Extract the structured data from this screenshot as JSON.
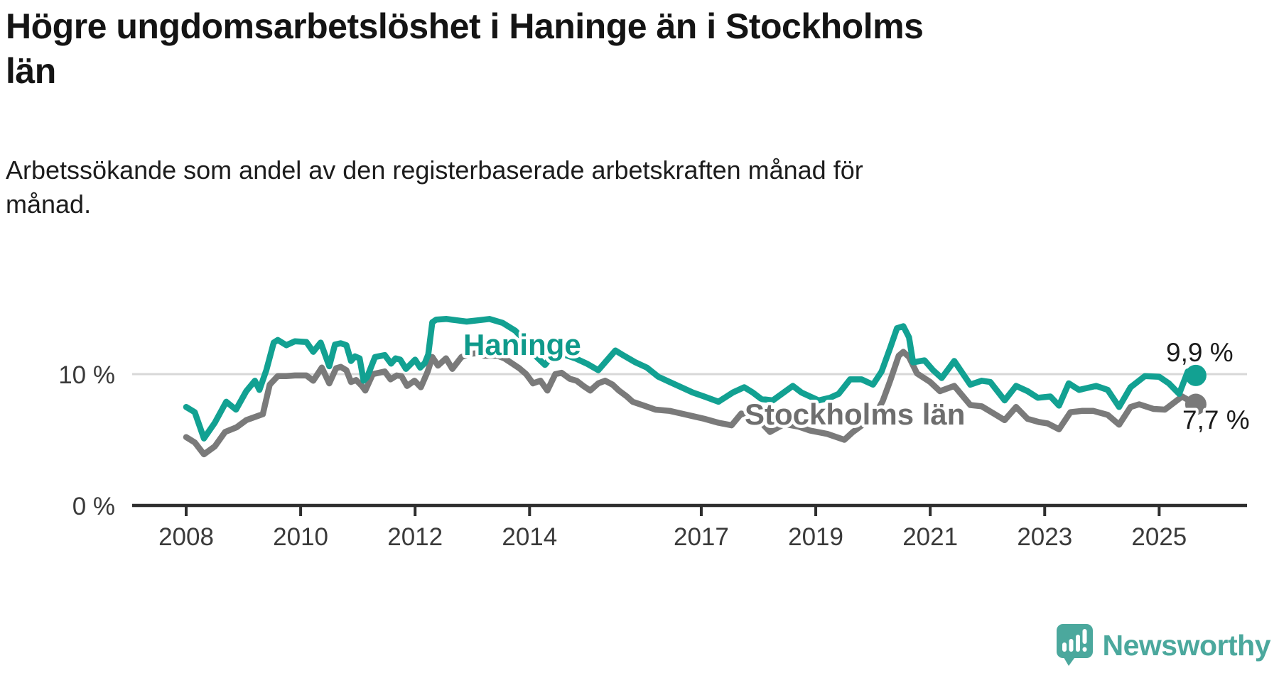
{
  "header": {
    "title": "Högre ungdomsarbetslöshet i Haninge än i Stockholms\nlän",
    "subtitle": "Arbetssökande som andel av den registerbaserade arbetskraften månad för\nmånad."
  },
  "chart_data": {
    "type": "line",
    "title": "Högre ungdomsarbetslöshet i Haninge än i Stockholms län",
    "unit": "percent of registered labour force",
    "x_label": "",
    "y_label": "",
    "x_range": [
      2008.0,
      2025.64
    ],
    "y_range": [
      0,
      14.7
    ],
    "x_ticks": [
      2008,
      2010,
      2012,
      2014,
      2017,
      2019,
      2021,
      2023,
      2025
    ],
    "y_ticks": [
      {
        "value": 10,
        "label": "10 %"
      },
      {
        "value": 0,
        "label": "0 %"
      }
    ],
    "gridlines_at": [
      10
    ],
    "gridline_color": "#D8D8D8",
    "axis_color": "#2E2E2E",
    "tick_label_color": "#3A3A3A",
    "legend_position": "inline-labels",
    "series": [
      {
        "name": "Haninge",
        "color": "#12A192",
        "label_color": "#0F9A8B",
        "end_value": 9.9,
        "end_label": "9,9 %",
        "points": [
          [
            2008.0,
            7.5
          ],
          [
            2008.15,
            7.1
          ],
          [
            2008.31,
            5.1
          ],
          [
            2008.5,
            6.3
          ],
          [
            2008.7,
            7.9
          ],
          [
            2008.87,
            7.3
          ],
          [
            2009.05,
            8.7
          ],
          [
            2009.2,
            9.5
          ],
          [
            2009.28,
            8.8
          ],
          [
            2009.4,
            10.3
          ],
          [
            2009.53,
            12.4
          ],
          [
            2009.6,
            12.6
          ],
          [
            2009.75,
            12.2
          ],
          [
            2009.9,
            12.5
          ],
          [
            2010.1,
            12.45
          ],
          [
            2010.22,
            11.7
          ],
          [
            2010.35,
            12.4
          ],
          [
            2010.5,
            10.6
          ],
          [
            2010.6,
            12.25
          ],
          [
            2010.7,
            12.35
          ],
          [
            2010.8,
            12.2
          ],
          [
            2010.88,
            11.0
          ],
          [
            2010.95,
            11.35
          ],
          [
            2011.03,
            11.2
          ],
          [
            2011.1,
            9.5
          ],
          [
            2011.16,
            9.75
          ],
          [
            2011.3,
            11.3
          ],
          [
            2011.47,
            11.45
          ],
          [
            2011.58,
            10.8
          ],
          [
            2011.66,
            11.2
          ],
          [
            2011.74,
            11.1
          ],
          [
            2011.84,
            10.4
          ],
          [
            2011.92,
            10.75
          ],
          [
            2012.0,
            11.1
          ],
          [
            2012.09,
            10.5
          ],
          [
            2012.17,
            10.85
          ],
          [
            2012.23,
            11.5
          ],
          [
            2012.3,
            13.95
          ],
          [
            2012.37,
            14.15
          ],
          [
            2012.55,
            14.2
          ],
          [
            2012.73,
            14.1
          ],
          [
            2012.9,
            14.0
          ],
          [
            2013.1,
            14.1
          ],
          [
            2013.3,
            14.2
          ],
          [
            2013.53,
            13.9
          ],
          [
            2013.75,
            13.3
          ],
          [
            2013.95,
            12.4
          ],
          [
            2014.1,
            11.4
          ],
          [
            2014.27,
            10.7
          ],
          [
            2014.45,
            11.7
          ],
          [
            2014.6,
            11.5
          ],
          [
            2014.8,
            11.2
          ],
          [
            2015.0,
            10.8
          ],
          [
            2015.2,
            10.3
          ],
          [
            2015.5,
            11.8
          ],
          [
            2015.65,
            11.4
          ],
          [
            2015.85,
            10.9
          ],
          [
            2016.05,
            10.5
          ],
          [
            2016.25,
            9.8
          ],
          [
            2016.45,
            9.4
          ],
          [
            2016.65,
            9.0
          ],
          [
            2016.85,
            8.6
          ],
          [
            2017.05,
            8.3
          ],
          [
            2017.3,
            7.9
          ],
          [
            2017.55,
            8.6
          ],
          [
            2017.75,
            9.0
          ],
          [
            2017.9,
            8.6
          ],
          [
            2018.05,
            8.1
          ],
          [
            2018.25,
            8.0
          ],
          [
            2018.6,
            9.1
          ],
          [
            2018.75,
            8.6
          ],
          [
            2019.05,
            8.0
          ],
          [
            2019.25,
            8.2
          ],
          [
            2019.4,
            8.5
          ],
          [
            2019.6,
            9.6
          ],
          [
            2019.8,
            9.6
          ],
          [
            2020.0,
            9.2
          ],
          [
            2020.15,
            10.2
          ],
          [
            2020.3,
            12.0
          ],
          [
            2020.42,
            13.5
          ],
          [
            2020.53,
            13.65
          ],
          [
            2020.63,
            12.8
          ],
          [
            2020.7,
            10.9
          ],
          [
            2020.9,
            11.05
          ],
          [
            2021.05,
            10.3
          ],
          [
            2021.2,
            9.7
          ],
          [
            2021.42,
            11.0
          ],
          [
            2021.7,
            9.2
          ],
          [
            2021.9,
            9.5
          ],
          [
            2022.05,
            9.4
          ],
          [
            2022.3,
            8.0
          ],
          [
            2022.5,
            9.1
          ],
          [
            2022.7,
            8.7
          ],
          [
            2022.88,
            8.2
          ],
          [
            2023.1,
            8.3
          ],
          [
            2023.25,
            7.6
          ],
          [
            2023.42,
            9.3
          ],
          [
            2023.6,
            8.8
          ],
          [
            2023.9,
            9.1
          ],
          [
            2024.1,
            8.8
          ],
          [
            2024.3,
            7.5
          ],
          [
            2024.5,
            9.0
          ],
          [
            2024.75,
            9.85
          ],
          [
            2025.0,
            9.8
          ],
          [
            2025.17,
            9.3
          ],
          [
            2025.35,
            8.5
          ],
          [
            2025.5,
            10.2
          ],
          [
            2025.64,
            9.9
          ]
        ]
      },
      {
        "name": "Stockholms län",
        "color": "#7A7A7A",
        "label_color": "#6E6E6E",
        "end_value": 7.7,
        "end_label": "7,7 %",
        "points": [
          [
            2008.0,
            5.2
          ],
          [
            2008.15,
            4.8
          ],
          [
            2008.31,
            3.9
          ],
          [
            2008.5,
            4.5
          ],
          [
            2008.68,
            5.6
          ],
          [
            2008.88,
            5.95
          ],
          [
            2009.05,
            6.5
          ],
          [
            2009.24,
            6.8
          ],
          [
            2009.34,
            6.95
          ],
          [
            2009.46,
            9.2
          ],
          [
            2009.6,
            9.85
          ],
          [
            2009.75,
            9.85
          ],
          [
            2009.9,
            9.9
          ],
          [
            2010.1,
            9.9
          ],
          [
            2010.22,
            9.5
          ],
          [
            2010.37,
            10.5
          ],
          [
            2010.5,
            9.3
          ],
          [
            2010.62,
            10.45
          ],
          [
            2010.7,
            10.55
          ],
          [
            2010.8,
            10.3
          ],
          [
            2010.88,
            9.4
          ],
          [
            2010.97,
            9.55
          ],
          [
            2011.07,
            9.1
          ],
          [
            2011.13,
            8.75
          ],
          [
            2011.26,
            10.0
          ],
          [
            2011.47,
            10.2
          ],
          [
            2011.57,
            9.6
          ],
          [
            2011.68,
            9.9
          ],
          [
            2011.76,
            9.85
          ],
          [
            2011.86,
            9.1
          ],
          [
            2011.99,
            9.5
          ],
          [
            2012.1,
            9.0
          ],
          [
            2012.22,
            10.2
          ],
          [
            2012.3,
            11.3
          ],
          [
            2012.4,
            10.65
          ],
          [
            2012.54,
            11.2
          ],
          [
            2012.65,
            10.4
          ],
          [
            2012.81,
            11.3
          ],
          [
            2012.98,
            11.55
          ],
          [
            2013.1,
            11.6
          ],
          [
            2013.2,
            11.4
          ],
          [
            2013.44,
            11.4
          ],
          [
            2013.56,
            11.2
          ],
          [
            2013.7,
            10.8
          ],
          [
            2013.82,
            10.45
          ],
          [
            2013.94,
            10.0
          ],
          [
            2014.06,
            9.3
          ],
          [
            2014.19,
            9.5
          ],
          [
            2014.31,
            8.75
          ],
          [
            2014.45,
            10.0
          ],
          [
            2014.56,
            10.1
          ],
          [
            2014.7,
            9.65
          ],
          [
            2014.82,
            9.5
          ],
          [
            2014.94,
            9.1
          ],
          [
            2015.06,
            8.75
          ],
          [
            2015.2,
            9.3
          ],
          [
            2015.32,
            9.5
          ],
          [
            2015.45,
            9.2
          ],
          [
            2015.56,
            8.75
          ],
          [
            2015.7,
            8.3
          ],
          [
            2015.8,
            7.9
          ],
          [
            2016.0,
            7.6
          ],
          [
            2016.2,
            7.3
          ],
          [
            2016.45,
            7.2
          ],
          [
            2016.65,
            7.0
          ],
          [
            2016.85,
            6.8
          ],
          [
            2017.05,
            6.6
          ],
          [
            2017.3,
            6.3
          ],
          [
            2017.53,
            6.1
          ],
          [
            2017.7,
            7.0
          ],
          [
            2017.9,
            6.7
          ],
          [
            2018.05,
            6.3
          ],
          [
            2018.2,
            5.6
          ],
          [
            2018.45,
            6.2
          ],
          [
            2018.7,
            6.0
          ],
          [
            2018.9,
            5.7
          ],
          [
            2019.2,
            5.45
          ],
          [
            2019.5,
            5.0
          ],
          [
            2019.65,
            5.6
          ],
          [
            2019.9,
            6.4
          ],
          [
            2020.05,
            7.0
          ],
          [
            2020.17,
            7.95
          ],
          [
            2020.3,
            9.5
          ],
          [
            2020.45,
            11.4
          ],
          [
            2020.53,
            11.7
          ],
          [
            2020.63,
            11.3
          ],
          [
            2020.77,
            10.05
          ],
          [
            2021.0,
            9.4
          ],
          [
            2021.17,
            8.7
          ],
          [
            2021.42,
            9.1
          ],
          [
            2021.7,
            7.65
          ],
          [
            2021.9,
            7.55
          ],
          [
            2022.3,
            6.5
          ],
          [
            2022.5,
            7.5
          ],
          [
            2022.7,
            6.6
          ],
          [
            2022.9,
            6.35
          ],
          [
            2023.05,
            6.25
          ],
          [
            2023.25,
            5.8
          ],
          [
            2023.45,
            7.1
          ],
          [
            2023.65,
            7.2
          ],
          [
            2023.85,
            7.2
          ],
          [
            2024.1,
            6.9
          ],
          [
            2024.3,
            6.15
          ],
          [
            2024.5,
            7.5
          ],
          [
            2024.65,
            7.7
          ],
          [
            2024.9,
            7.35
          ],
          [
            2025.1,
            7.3
          ],
          [
            2025.4,
            8.3
          ],
          [
            2025.64,
            7.7
          ]
        ]
      }
    ]
  },
  "logo": {
    "text": "Newsworthy",
    "color": "#4BA89D"
  }
}
